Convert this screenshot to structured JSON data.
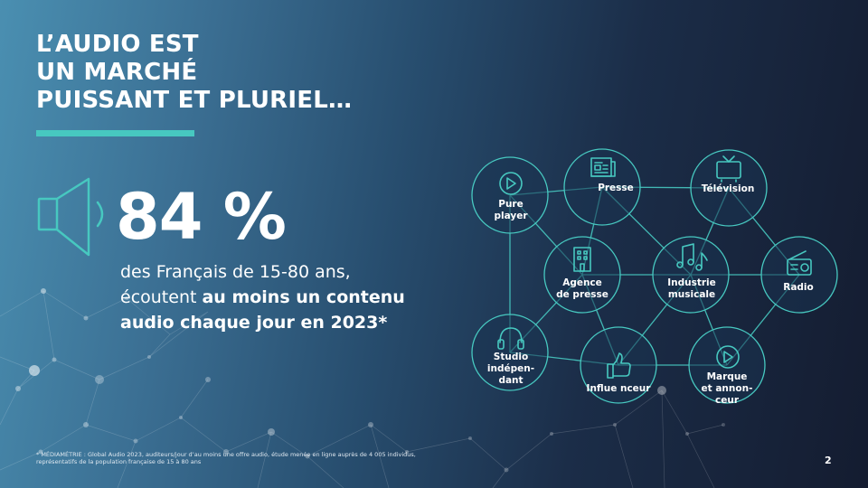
{
  "title": {
    "line1": "L’AUDIO EST",
    "line2": "UN MARCHÉ",
    "line3": "PUISSANT ET PLURIEL…"
  },
  "stat": {
    "value": "84 %",
    "line1": "des Français de 15-80 ans,",
    "line2_regular": "écoutent ",
    "line2_bold": "au moins un contenu",
    "line3_bold": "audio chaque jour en 2023*"
  },
  "network": {
    "nodes": [
      {
        "id": "pure-player",
        "label_lines": [
          "Pure",
          "player"
        ],
        "icon": "play-icon"
      },
      {
        "id": "presse",
        "label_lines": [
          "Presse"
        ],
        "icon": "newspaper-icon"
      },
      {
        "id": "television",
        "label_lines": [
          "Télévision"
        ],
        "icon": "tv-icon"
      },
      {
        "id": "agence-de-presse",
        "label_lines": [
          "Agence",
          "de presse"
        ],
        "icon": "building-icon"
      },
      {
        "id": "industrie-musicale",
        "label_lines": [
          "Industrie",
          "musicale"
        ],
        "icon": "music-notes-icon"
      },
      {
        "id": "radio",
        "label_lines": [
          "Radio"
        ],
        "icon": "radio-icon"
      },
      {
        "id": "studio-independant",
        "label_lines": [
          "Studio",
          "indépen-",
          "dant"
        ],
        "icon": "headphones-icon"
      },
      {
        "id": "influenceur",
        "label_lines": [
          "Influe nceur"
        ],
        "icon": "thumbs-up-icon"
      },
      {
        "id": "marque-annonceur",
        "label_lines": [
          "Marque",
          "et annon-",
          "ceur"
        ],
        "icon": "play-icon"
      }
    ],
    "accent_color": "#47c8c0"
  },
  "footnote": {
    "line1": "* MÉDIAMÉTRIE : Global Audio 2023, auditeurs/jour d’au moins une offre audio, étude menée en ligne auprès de 4 005 individus,",
    "line2": "représentatifs de la population française de 15 à 80 ans"
  },
  "page_number": "2",
  "colors": {
    "accent": "#47c8c0",
    "background_left": "#4a8fb1",
    "background_right": "#141c30",
    "text": "#ffffff"
  }
}
